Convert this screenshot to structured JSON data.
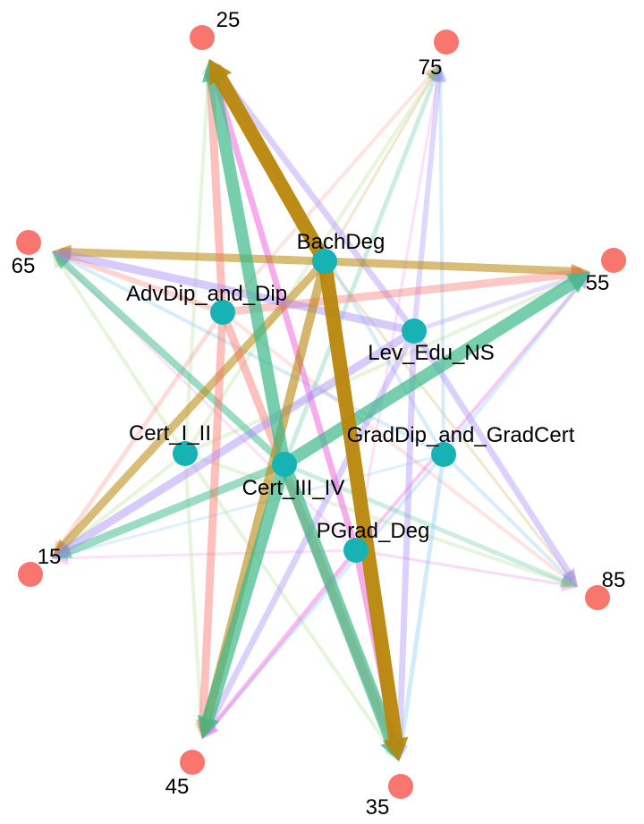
{
  "colors": {
    "age_node": "#F8766D",
    "edu_node": "#17B2B4",
    "series": {
      "AdvDip_and_Dip": "#F8766D",
      "BachDeg": "#B8860B",
      "Cert_I_II": "#A3D977",
      "Cert_III_IV": "#3CB98A",
      "GradDip_and_GradCert": "#7CC6F0",
      "Lev_Edu_NS": "#A78BFA",
      "PGrad_Deg": "#F16ADB"
    }
  },
  "nodes": {
    "age": [
      {
        "id": "25",
        "label": "25"
      },
      {
        "id": "75",
        "label": "75"
      },
      {
        "id": "65",
        "label": "65"
      },
      {
        "id": "55",
        "label": "55"
      },
      {
        "id": "15",
        "label": "15"
      },
      {
        "id": "85",
        "label": "85"
      },
      {
        "id": "45",
        "label": "45"
      },
      {
        "id": "35",
        "label": "35"
      }
    ],
    "education": [
      {
        "id": "BachDeg",
        "label": "BachDeg"
      },
      {
        "id": "AdvDip_and_Dip",
        "label": "AdvDip_and_Dip"
      },
      {
        "id": "Lev_Edu_NS",
        "label": "Lev_Edu_NS"
      },
      {
        "id": "Cert_I_II",
        "label": "Cert_I_II"
      },
      {
        "id": "GradDip_and_GradCert",
        "label": "GradDip_and_GradCert"
      },
      {
        "id": "Cert_III_IV",
        "label": "Cert_III_IV"
      },
      {
        "id": "PGrad_Deg",
        "label": "PGrad_Deg"
      }
    ]
  },
  "edges": [
    {
      "from": "BachDeg",
      "to": "25",
      "weight": 16,
      "opacity": 0.95
    },
    {
      "from": "BachDeg",
      "to": "35",
      "weight": 16,
      "opacity": 0.95
    },
    {
      "from": "BachDeg",
      "to": "55",
      "weight": 9,
      "opacity": 0.55
    },
    {
      "from": "BachDeg",
      "to": "65",
      "weight": 9,
      "opacity": 0.55
    },
    {
      "from": "BachDeg",
      "to": "45",
      "weight": 10,
      "opacity": 0.6
    },
    {
      "from": "BachDeg",
      "to": "15",
      "weight": 9,
      "opacity": 0.55
    },
    {
      "from": "BachDeg",
      "to": "75",
      "weight": 3,
      "opacity": 0.2
    },
    {
      "from": "BachDeg",
      "to": "85",
      "weight": 3,
      "opacity": 0.2
    },
    {
      "from": "Cert_III_IV",
      "to": "25",
      "weight": 14,
      "opacity": 0.7
    },
    {
      "from": "Cert_III_IV",
      "to": "35",
      "weight": 14,
      "opacity": 0.7
    },
    {
      "from": "Cert_III_IV",
      "to": "45",
      "weight": 14,
      "opacity": 0.7
    },
    {
      "from": "Cert_III_IV",
      "to": "55",
      "weight": 14,
      "opacity": 0.7
    },
    {
      "from": "Cert_III_IV",
      "to": "65",
      "weight": 8,
      "opacity": 0.5
    },
    {
      "from": "Cert_III_IV",
      "to": "15",
      "weight": 9,
      "opacity": 0.5
    },
    {
      "from": "Cert_III_IV",
      "to": "75",
      "weight": 5,
      "opacity": 0.25
    },
    {
      "from": "Cert_III_IV",
      "to": "85",
      "weight": 5,
      "opacity": 0.25
    },
    {
      "from": "AdvDip_and_Dip",
      "to": "25",
      "weight": 9,
      "opacity": 0.45
    },
    {
      "from": "AdvDip_and_Dip",
      "to": "35",
      "weight": 9,
      "opacity": 0.45
    },
    {
      "from": "AdvDip_and_Dip",
      "to": "45",
      "weight": 9,
      "opacity": 0.45
    },
    {
      "from": "AdvDip_and_Dip",
      "to": "55",
      "weight": 9,
      "opacity": 0.4
    },
    {
      "from": "AdvDip_and_Dip",
      "to": "65",
      "weight": 6,
      "opacity": 0.3
    },
    {
      "from": "AdvDip_and_Dip",
      "to": "15",
      "weight": 5,
      "opacity": 0.25
    },
    {
      "from": "AdvDip_and_Dip",
      "to": "75",
      "weight": 4,
      "opacity": 0.2
    },
    {
      "from": "AdvDip_and_Dip",
      "to": "85",
      "weight": 4,
      "opacity": 0.2
    },
    {
      "from": "Lev_Edu_NS",
      "to": "25",
      "weight": 7,
      "opacity": 0.4
    },
    {
      "from": "Lev_Edu_NS",
      "to": "35",
      "weight": 7,
      "opacity": 0.4
    },
    {
      "from": "Lev_Edu_NS",
      "to": "45",
      "weight": 7,
      "opacity": 0.4
    },
    {
      "from": "Lev_Edu_NS",
      "to": "65",
      "weight": 9,
      "opacity": 0.45
    },
    {
      "from": "Lev_Edu_NS",
      "to": "15",
      "weight": 9,
      "opacity": 0.45
    },
    {
      "from": "Lev_Edu_NS",
      "to": "75",
      "weight": 6,
      "opacity": 0.35
    },
    {
      "from": "Lev_Edu_NS",
      "to": "85",
      "weight": 7,
      "opacity": 0.4
    },
    {
      "from": "Lev_Edu_NS",
      "to": "55",
      "weight": 5,
      "opacity": 0.3
    },
    {
      "from": "PGrad_Deg",
      "to": "25",
      "weight": 7,
      "opacity": 0.55
    },
    {
      "from": "PGrad_Deg",
      "to": "35",
      "weight": 7,
      "opacity": 0.55
    },
    {
      "from": "PGrad_Deg",
      "to": "45",
      "weight": 5,
      "opacity": 0.45
    },
    {
      "from": "PGrad_Deg",
      "to": "55",
      "weight": 4,
      "opacity": 0.35
    },
    {
      "from": "PGrad_Deg",
      "to": "65",
      "weight": 3,
      "opacity": 0.2
    },
    {
      "from": "PGrad_Deg",
      "to": "15",
      "weight": 3,
      "opacity": 0.2
    },
    {
      "from": "PGrad_Deg",
      "to": "75",
      "weight": 3,
      "opacity": 0.2
    },
    {
      "from": "PGrad_Deg",
      "to": "85",
      "weight": 3,
      "opacity": 0.25
    },
    {
      "from": "Cert_I_II",
      "to": "25",
      "weight": 4,
      "opacity": 0.25
    },
    {
      "from": "Cert_I_II",
      "to": "35",
      "weight": 4,
      "opacity": 0.25
    },
    {
      "from": "Cert_I_II",
      "to": "45",
      "weight": 4,
      "opacity": 0.25
    },
    {
      "from": "Cert_I_II",
      "to": "55",
      "weight": 4,
      "opacity": 0.25
    },
    {
      "from": "Cert_I_II",
      "to": "65",
      "weight": 4,
      "opacity": 0.25
    },
    {
      "from": "Cert_I_II",
      "to": "15",
      "weight": 4,
      "opacity": 0.25
    },
    {
      "from": "Cert_I_II",
      "to": "75",
      "weight": 4,
      "opacity": 0.25
    },
    {
      "from": "Cert_I_II",
      "to": "85",
      "weight": 4,
      "opacity": 0.25
    },
    {
      "from": "GradDip_and_GradCert",
      "to": "25",
      "weight": 4,
      "opacity": 0.3
    },
    {
      "from": "GradDip_and_GradCert",
      "to": "35",
      "weight": 5,
      "opacity": 0.35
    },
    {
      "from": "GradDip_and_GradCert",
      "to": "45",
      "weight": 4,
      "opacity": 0.3
    },
    {
      "from": "GradDip_and_GradCert",
      "to": "55",
      "weight": 4,
      "opacity": 0.3
    },
    {
      "from": "GradDip_and_GradCert",
      "to": "65",
      "weight": 4,
      "opacity": 0.3
    },
    {
      "from": "GradDip_and_GradCert",
      "to": "15",
      "weight": 3,
      "opacity": 0.25
    },
    {
      "from": "GradDip_and_GradCert",
      "to": "75",
      "weight": 4,
      "opacity": 0.3
    },
    {
      "from": "GradDip_and_GradCert",
      "to": "85",
      "weight": 4,
      "opacity": 0.3
    }
  ]
}
